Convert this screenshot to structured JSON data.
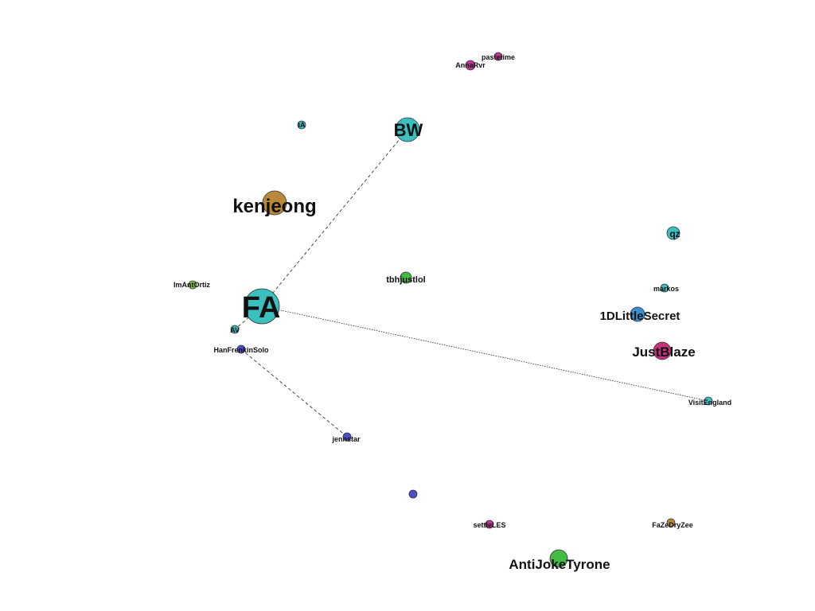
{
  "graph": {
    "nodes": [
      {
        "id": "pastetime",
        "label": "pastetime",
        "color": "#c0399a",
        "size": "small"
      },
      {
        "id": "AnnaRvr",
        "label": "AnnaRvr",
        "color": "#c0399a",
        "size": "small"
      },
      {
        "id": "BW",
        "label": "BW",
        "color": "#3bbfbf",
        "size": "large"
      },
      {
        "id": "iA",
        "label": "iA",
        "color": "#3bbfbf",
        "size": "small"
      },
      {
        "id": "kenjeong",
        "label": "kenjeong",
        "color": "#b8893a",
        "size": "large"
      },
      {
        "id": "qz",
        "label": "qz",
        "color": "#3bbfbf",
        "size": "medium"
      },
      {
        "id": "ImAntOrtiz",
        "label": "ImAntOrtiz",
        "color": "#8cc63f",
        "size": "small"
      },
      {
        "id": "tbhjustlol",
        "label": "tbhjustlol",
        "color": "#44bb44",
        "size": "small"
      },
      {
        "id": "markos",
        "label": "markos",
        "color": "#3bbfbf",
        "size": "small"
      },
      {
        "id": "FA",
        "label": "FA",
        "color": "#3bbfbf",
        "size": "xlarge"
      },
      {
        "id": "1DLittleSecret",
        "label": "1DLittleSecret",
        "color": "#3a8fd0",
        "size": "medium"
      },
      {
        "id": "AV",
        "label": "AV",
        "color": "#3bbfbf",
        "size": "small"
      },
      {
        "id": "HanFrenkinSolo",
        "label": "HanFrenkinSolo",
        "color": "#4a4fc8",
        "size": "small"
      },
      {
        "id": "JustBlaze",
        "label": "JustBlaze",
        "color": "#c8327a",
        "size": "medium"
      },
      {
        "id": "VisitEngland",
        "label": "VisitEngland",
        "color": "#3bbfbf",
        "size": "small"
      },
      {
        "id": "jennstar",
        "label": "jennstar",
        "color": "#4a4fc8",
        "size": "small"
      },
      {
        "id": "unlabeled",
        "label": "",
        "color": "#4a4fc8",
        "size": "small"
      },
      {
        "id": "settleLES",
        "label": "settleLES",
        "color": "#c0399a",
        "size": "small"
      },
      {
        "id": "FaZeDryZee",
        "label": "FaZeDryZee",
        "color": "#b8893a",
        "size": "small"
      },
      {
        "id": "AntiJokeTyrone",
        "label": "AntiJokeTyrone",
        "color": "#44bb44",
        "size": "large"
      }
    ],
    "edges": [
      {
        "source": "FA",
        "target": "BW"
      },
      {
        "source": "FA",
        "target": "VisitEngland"
      },
      {
        "source": "FA",
        "target": "AV"
      },
      {
        "source": "HanFrenkinSolo",
        "target": "jennstar"
      }
    ]
  }
}
